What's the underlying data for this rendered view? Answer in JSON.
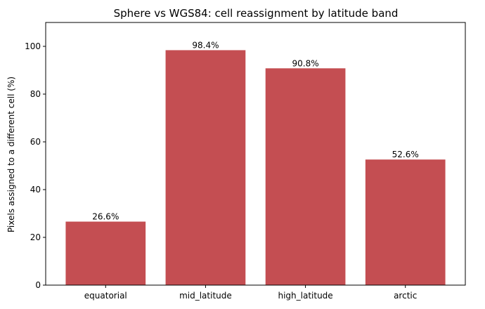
{
  "chart_data": {
    "type": "bar",
    "title": "Sphere vs WGS84: cell reassignment by latitude band",
    "xlabel": "",
    "ylabel": "Pixels assigned to a different cell (%)",
    "categories": [
      "equatorial",
      "mid_latitude",
      "high_latitude",
      "arctic"
    ],
    "values": [
      26.6,
      98.4,
      90.8,
      52.6
    ],
    "value_labels": [
      "26.6%",
      "98.4%",
      "90.8%",
      "52.6%"
    ],
    "ylim": [
      0,
      110
    ],
    "yticks": [
      0,
      20,
      40,
      60,
      80,
      100
    ],
    "bar_color": "#c44e52",
    "grid": false,
    "legend": "none"
  }
}
